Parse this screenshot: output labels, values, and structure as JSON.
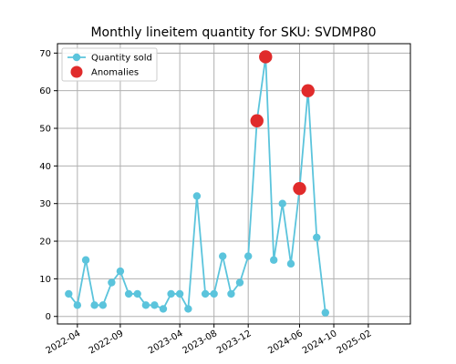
{
  "chart_data": {
    "type": "line",
    "title": "Monthly lineitem quantity for SKU: SVDMP80",
    "xlabel": "",
    "ylabel": "",
    "ylim": [
      -2,
      72.5
    ],
    "yticks": [
      0,
      10,
      20,
      30,
      40,
      50,
      60,
      70
    ],
    "xlim": [
      "2022-01-20",
      "2025-07-01"
    ],
    "xticks": [
      "2022-04",
      "2022-09",
      "2023-04",
      "2023-08",
      "2023-12",
      "2024-06",
      "2024-10",
      "2025-02"
    ],
    "grid": true,
    "legend_position": "top-left",
    "series": [
      {
        "name": "Quantity sold",
        "kind": "line-marker",
        "color": "#5bc4dc",
        "points": [
          {
            "x": "2022-03",
            "y": 6
          },
          {
            "x": "2022-04",
            "y": 3
          },
          {
            "x": "2022-05",
            "y": 15
          },
          {
            "x": "2022-06",
            "y": 3
          },
          {
            "x": "2022-07",
            "y": 3
          },
          {
            "x": "2022-08",
            "y": 9
          },
          {
            "x": "2022-09",
            "y": 12
          },
          {
            "x": "2022-10",
            "y": 6
          },
          {
            "x": "2022-11",
            "y": 6
          },
          {
            "x": "2022-12",
            "y": 3
          },
          {
            "x": "2023-01",
            "y": 3
          },
          {
            "x": "2023-02",
            "y": 2
          },
          {
            "x": "2023-03",
            "y": 6
          },
          {
            "x": "2023-04",
            "y": 6
          },
          {
            "x": "2023-05",
            "y": 2
          },
          {
            "x": "2023-06",
            "y": 32
          },
          {
            "x": "2023-07",
            "y": 6
          },
          {
            "x": "2023-08",
            "y": 6
          },
          {
            "x": "2023-09",
            "y": 16
          },
          {
            "x": "2023-10",
            "y": 6
          },
          {
            "x": "2023-11",
            "y": 9
          },
          {
            "x": "2023-12",
            "y": 16
          },
          {
            "x": "2024-01",
            "y": 52
          },
          {
            "x": "2024-02",
            "y": 69
          },
          {
            "x": "2024-03",
            "y": 15
          },
          {
            "x": "2024-04",
            "y": 30
          },
          {
            "x": "2024-05",
            "y": 14
          },
          {
            "x": "2024-06",
            "y": 34
          },
          {
            "x": "2024-07",
            "y": 60
          },
          {
            "x": "2024-08",
            "y": 21
          },
          {
            "x": "2024-09",
            "y": 1
          }
        ]
      },
      {
        "name": "Anomalies",
        "kind": "marker",
        "color": "#e02b2b",
        "points": [
          {
            "x": "2024-01",
            "y": 52
          },
          {
            "x": "2024-02",
            "y": 69
          },
          {
            "x": "2024-06",
            "y": 34
          },
          {
            "x": "2024-07",
            "y": 60
          }
        ]
      }
    ]
  }
}
